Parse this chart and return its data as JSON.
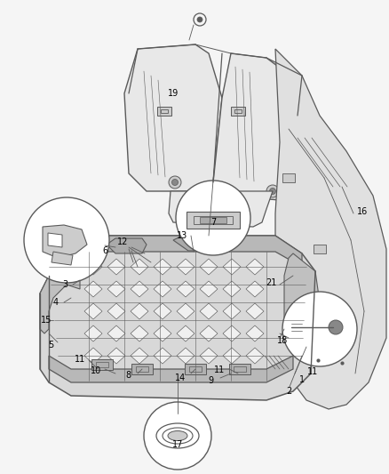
{
  "background_color": "#f5f5f5",
  "line_color": "#5a5a5a",
  "label_color": "#000000",
  "figsize": [
    4.38,
    5.33
  ],
  "dpi": 100,
  "label_fs": 7.0
}
